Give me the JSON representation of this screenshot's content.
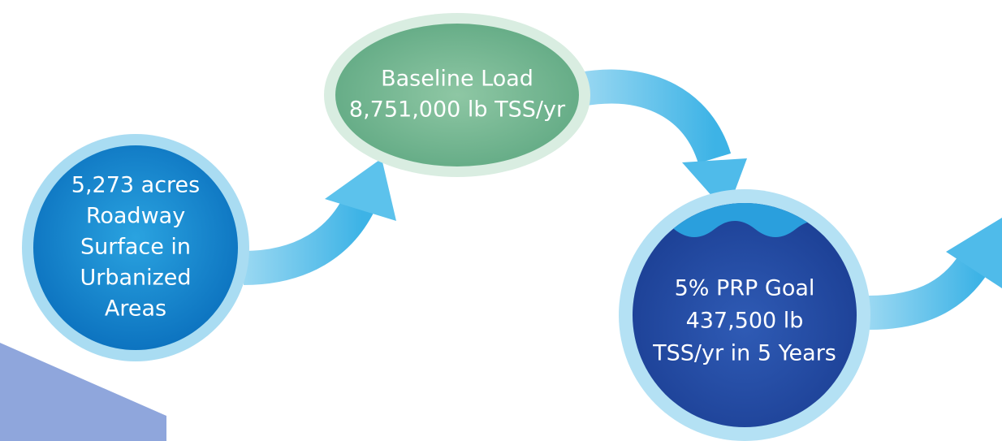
{
  "nodes": [
    {
      "lines": [
        "5,273 acres",
        "Roadway",
        "Surface in",
        "Urbanized",
        "Areas"
      ]
    },
    {
      "lines": [
        "Baseline Load",
        "8,751,000 lb TSS/yr"
      ]
    },
    {
      "lines": [
        "5% PRP Goal",
        "437,500 lb",
        "TSS/yr in 5 Years"
      ]
    }
  ]
}
